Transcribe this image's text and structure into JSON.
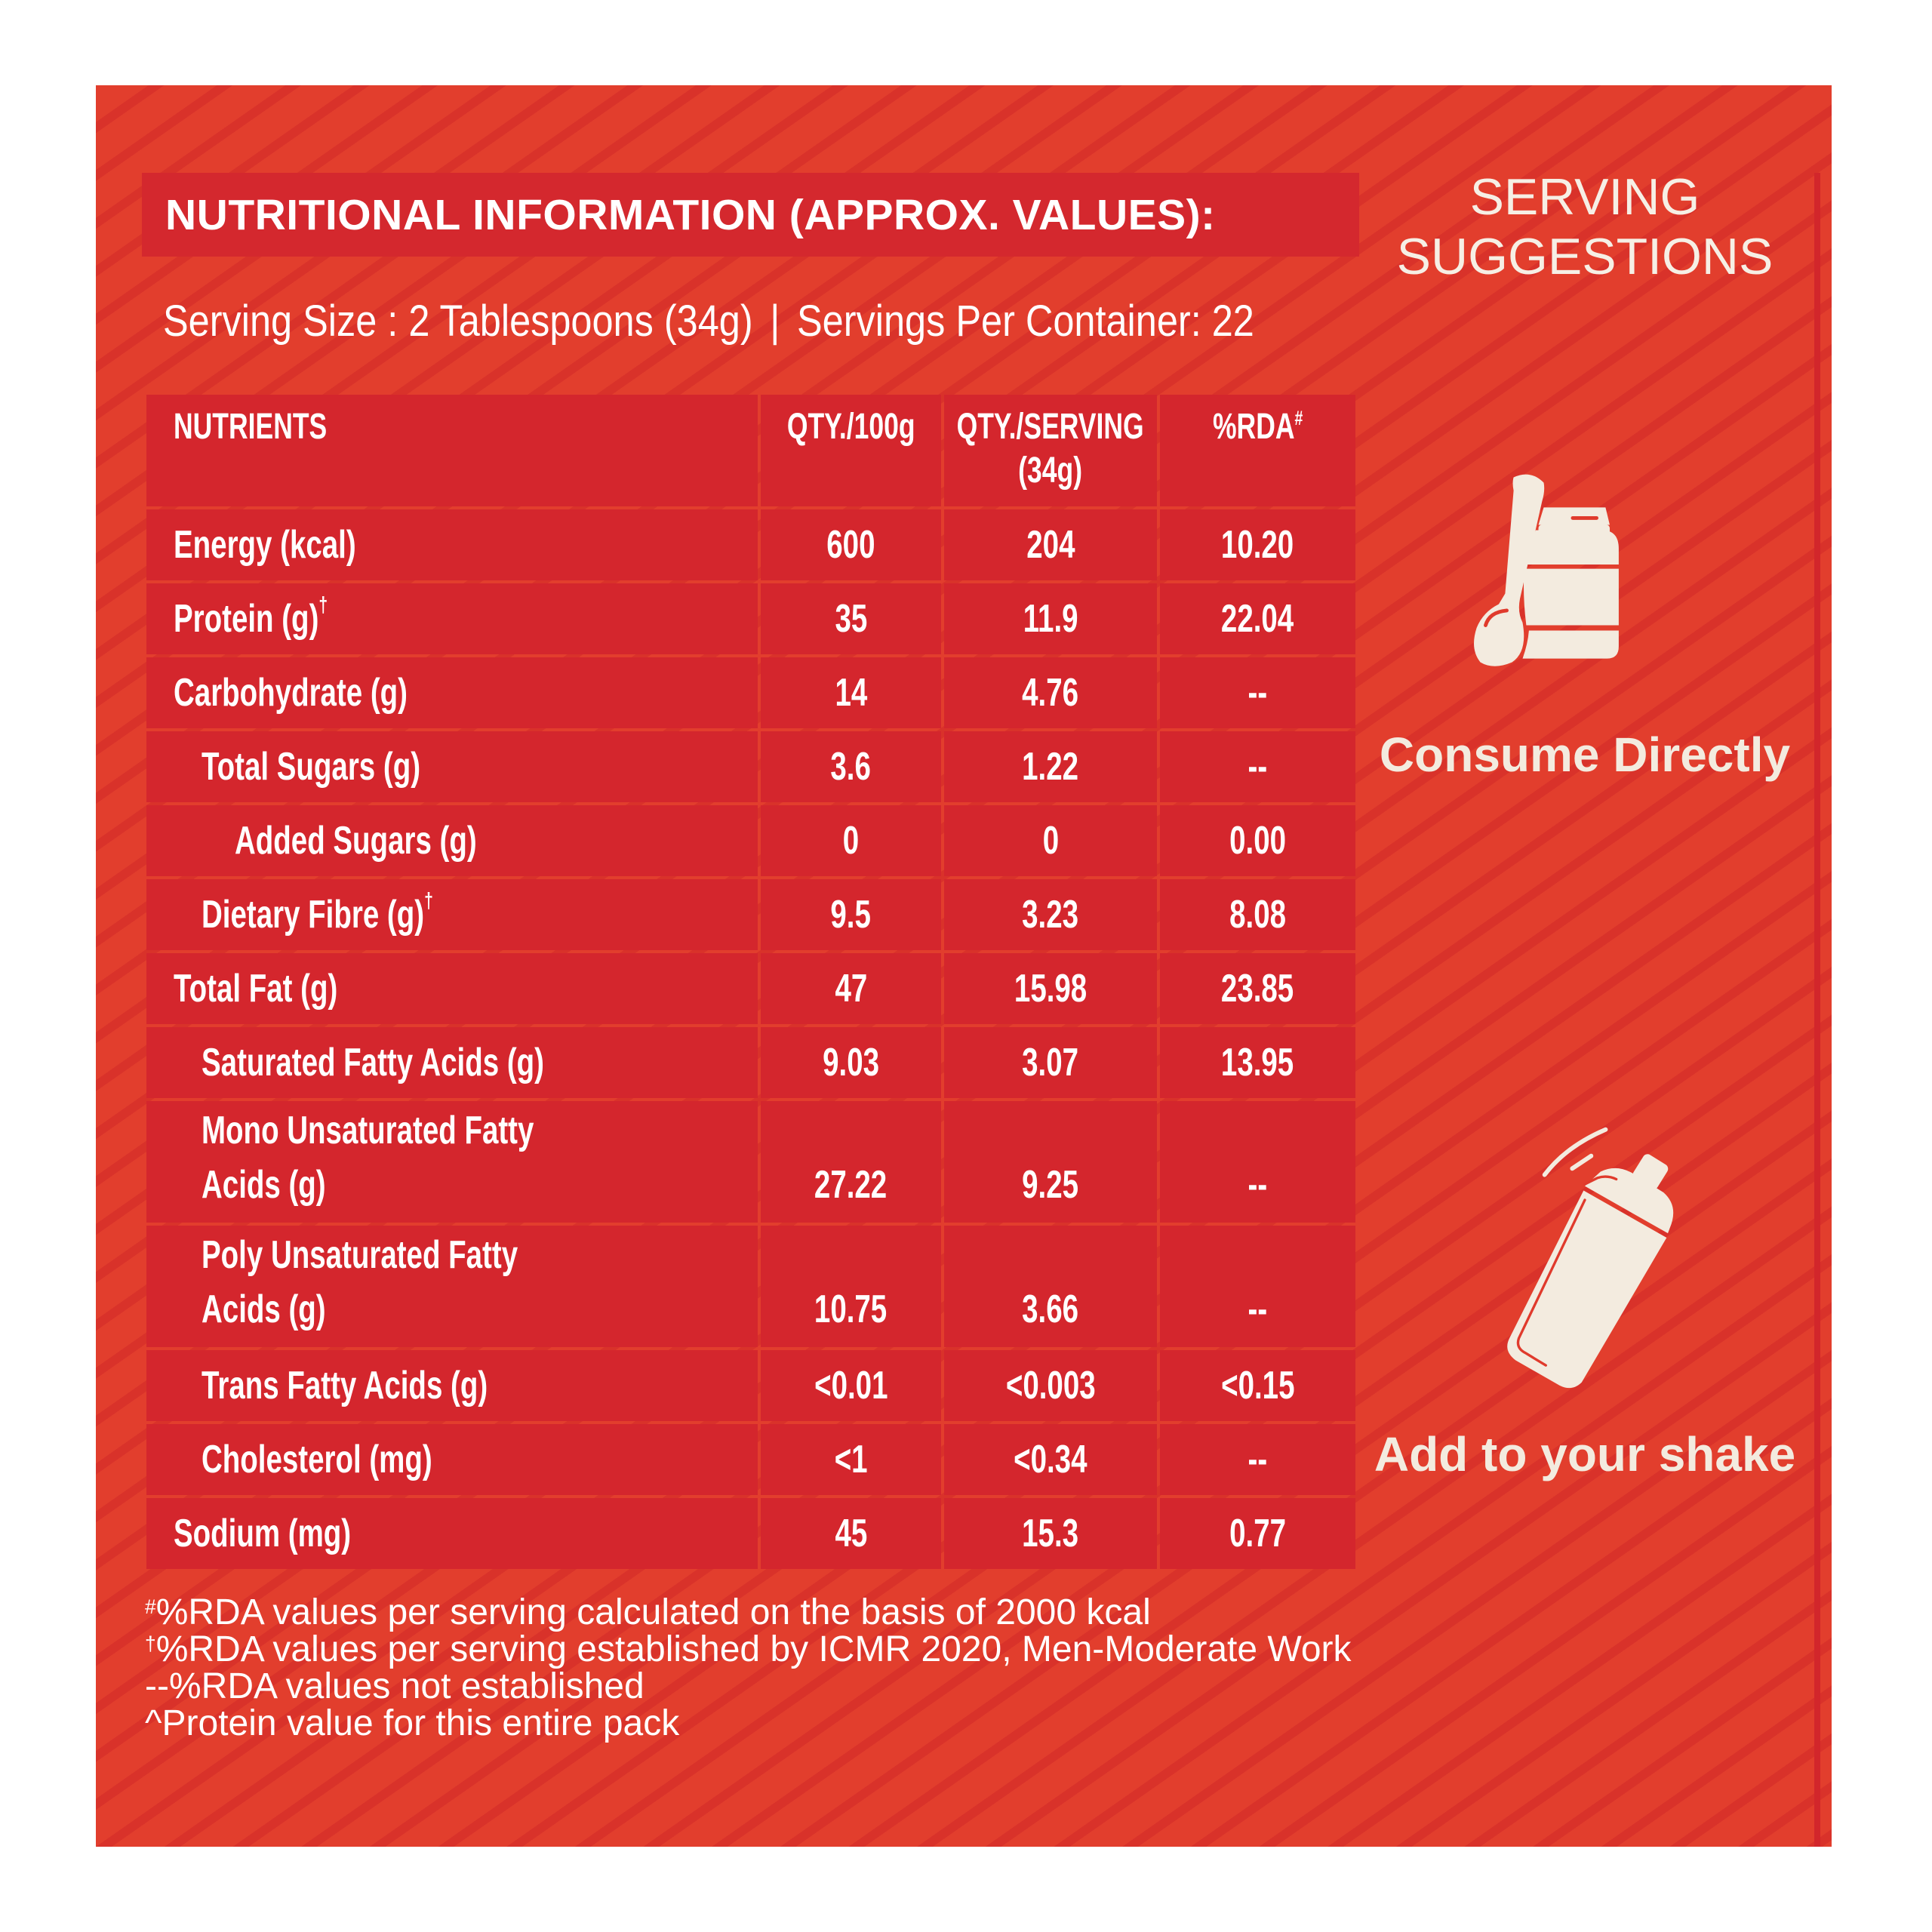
{
  "title": "NUTRITIONAL INFORMATION (APPROX. VALUES):",
  "serving_size": "Serving Size : 2 Tablespoons (34g)",
  "separator": "|",
  "servings_per_container": "Servings Per Container: 22",
  "table": {
    "headers": [
      "NUTRIENTS",
      "QTY./100g",
      "QTY./SERVING\n(34g)",
      "%RDA"
    ],
    "rda_header_mark": "#",
    "rows": [
      {
        "label": "Energy (kcal)",
        "mark": "",
        "level": 0,
        "per100g": "600",
        "per_serving": "204",
        "rda": "10.20"
      },
      {
        "label": "Protein (g)",
        "mark": "†",
        "level": 0,
        "per100g": "35",
        "per_serving": "11.9",
        "rda": "22.04"
      },
      {
        "label": "Carbohydrate (g)",
        "mark": "",
        "level": 0,
        "per100g": "14",
        "per_serving": "4.76",
        "rda": "--"
      },
      {
        "label": "Total Sugars (g)",
        "mark": "",
        "level": 1,
        "per100g": "3.6",
        "per_serving": "1.22",
        "rda": "--"
      },
      {
        "label": "Added Sugars (g)",
        "mark": "",
        "level": 2,
        "per100g": "0",
        "per_serving": "0",
        "rda": "0.00"
      },
      {
        "label": "Dietary Fibre (g)",
        "mark": "†",
        "level": 1,
        "per100g": "9.5",
        "per_serving": "3.23",
        "rda": "8.08"
      },
      {
        "label": "Total Fat (g)",
        "mark": "",
        "level": 0,
        "per100g": "47",
        "per_serving": "15.98",
        "rda": "23.85"
      },
      {
        "label": "Saturated Fatty Acids (g)",
        "mark": "",
        "level": 1,
        "per100g": "9.03",
        "per_serving": "3.07",
        "rda": "13.95"
      },
      {
        "label": "Mono Unsaturated Fatty\nAcids (g)",
        "mark": "",
        "level": 1,
        "per100g": "27.22",
        "per_serving": "9.25",
        "rda": "--"
      },
      {
        "label": "Poly Unsaturated Fatty\nAcids (g)",
        "mark": "",
        "level": 1,
        "per100g": "10.75",
        "per_serving": "3.66",
        "rda": "--"
      },
      {
        "label": "Trans Fatty Acids (g)",
        "mark": "",
        "level": 1,
        "per100g": "<0.01",
        "per_serving": "<0.003",
        "rda": "<0.15"
      },
      {
        "label": "Cholesterol (mg)",
        "mark": "",
        "level": 1,
        "per100g": "<1",
        "per_serving": "<0.34",
        "rda": "--"
      },
      {
        "label": "Sodium (mg)",
        "mark": "",
        "level": 0,
        "per100g": "45",
        "per_serving": "15.3",
        "rda": "0.77"
      }
    ]
  },
  "footnotes": [
    {
      "mark": "#",
      "text": "%RDA values per serving calculated on the basis of 2000 kcal"
    },
    {
      "mark": "†",
      "text": "%RDA values per serving established by ICMR 2020, Men-Moderate Work"
    },
    {
      "mark": "",
      "text": "--%RDA values not established"
    },
    {
      "mark": "",
      "text": "^Protein value for this entire pack"
    }
  ],
  "suggestions": {
    "heading": "SERVING SUGGESTIONS",
    "items": [
      {
        "icon": "jar-spoon-icon",
        "label": "Consume Directly"
      },
      {
        "icon": "shaker-icon",
        "label": "Add to your shake"
      }
    ]
  },
  "colors": {
    "background": "#e23e2d",
    "stripe": "#d9322a",
    "table_cell": "#d4262d",
    "icon_cream": "#f3ebdf",
    "text": "#ffffff"
  }
}
